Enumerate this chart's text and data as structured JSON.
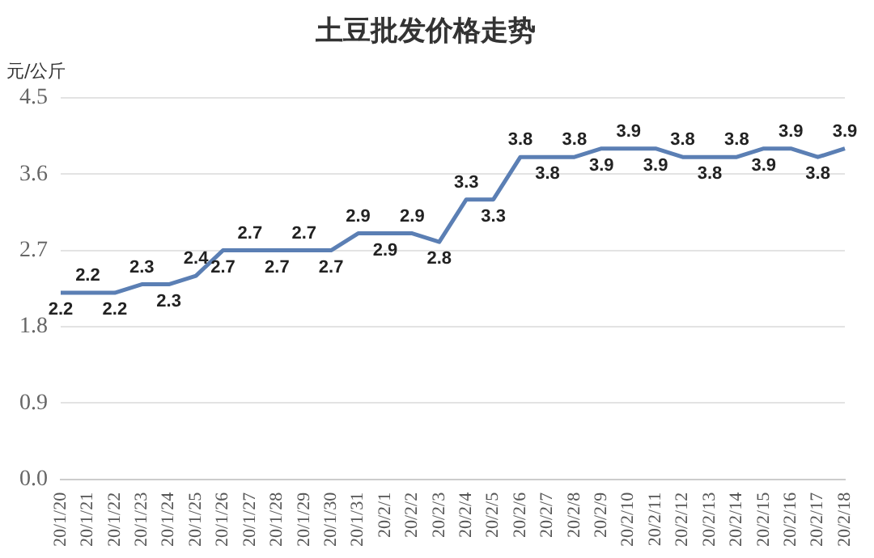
{
  "chart_data": {
    "type": "line",
    "title": "土豆批发价格走势",
    "ylabel": "元/公斤",
    "categories": [
      "20/1/20",
      "20/1/21",
      "20/1/22",
      "20/1/23",
      "20/1/24",
      "20/1/25",
      "20/1/26",
      "20/1/27",
      "20/1/28",
      "20/1/29",
      "20/1/30",
      "20/1/31",
      "20/2/1",
      "20/2/2",
      "20/2/3",
      "20/2/4",
      "20/2/5",
      "20/2/6",
      "20/2/7",
      "20/2/8",
      "20/2/9",
      "20/2/10",
      "20/2/11",
      "20/2/12",
      "20/2/13",
      "20/2/14",
      "20/2/15",
      "20/2/16",
      "20/2/17",
      "20/2/18"
    ],
    "series": [
      {
        "color": "#5b7fb4",
        "values": [
          2.2,
          2.2,
          2.2,
          2.3,
          2.3,
          2.4,
          2.7,
          2.7,
          2.7,
          2.7,
          2.7,
          2.9,
          2.9,
          2.9,
          2.8,
          3.3,
          3.3,
          3.8,
          3.8,
          3.8,
          3.9,
          3.9,
          3.9,
          3.8,
          3.8,
          3.8,
          3.9,
          3.9,
          3.8,
          3.9
        ]
      }
    ],
    "ylim": [
      0,
      4.5
    ],
    "yticks": [
      {
        "value": 0,
        "label": "0.0"
      },
      {
        "value": 0.9,
        "label": "0.9"
      },
      {
        "value": 1.8,
        "label": "1.8"
      },
      {
        "value": 2.7,
        "label": "2.7"
      },
      {
        "value": 3.6,
        "label": "3.6"
      },
      {
        "value": 4.5,
        "label": "4.5"
      }
    ],
    "grid": "y",
    "legend": false,
    "marker": "none",
    "line_style": "solid",
    "data_labels": true
  }
}
